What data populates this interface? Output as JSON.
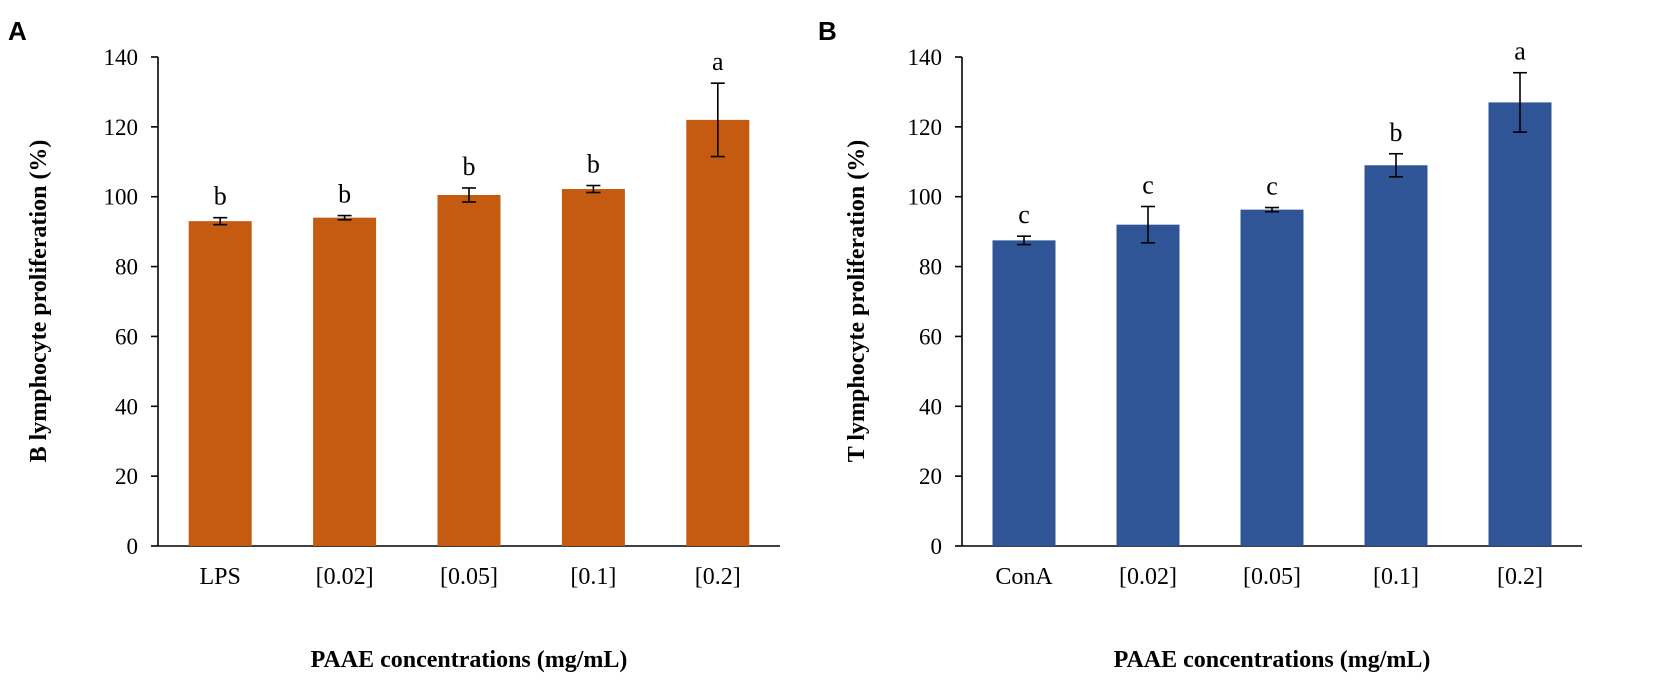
{
  "chart_data": [
    {
      "type": "bar",
      "panel_label": "A",
      "categories": [
        "LPS",
        "[0.02]",
        "[0.05]",
        "[0.1]",
        "[0.2]"
      ],
      "values": [
        93,
        94,
        100.5,
        102.2,
        122
      ],
      "errors": [
        1,
        0.6,
        2,
        1,
        10.5
      ],
      "significance": [
        "b",
        "b",
        "b",
        "b",
        "a"
      ],
      "xlabel": "PAAE concentrations (mg/mL)",
      "ylabel": "B lymphocyte proliferation (%)",
      "ylim": [
        0,
        140
      ],
      "yticks": [
        0,
        20,
        40,
        60,
        80,
        100,
        120,
        140
      ],
      "color": "#C55A11"
    },
    {
      "type": "bar",
      "panel_label": "B",
      "categories": [
        "ConA",
        "[0.02]",
        "[0.05]",
        "[0.1]",
        "[0.2]"
      ],
      "values": [
        87.5,
        92,
        96.3,
        109,
        127
      ],
      "errors": [
        1.2,
        5.2,
        0.6,
        3.3,
        8.5
      ],
      "significance": [
        "c",
        "c",
        "c",
        "b",
        "a"
      ],
      "xlabel": "PAAE concentrations (mg/mL)",
      "ylabel": "T lymphocyte proliferation (%)",
      "ylim": [
        0,
        140
      ],
      "yticks": [
        0,
        20,
        40,
        60,
        80,
        100,
        120,
        140
      ],
      "color": "#2F5597"
    }
  ]
}
